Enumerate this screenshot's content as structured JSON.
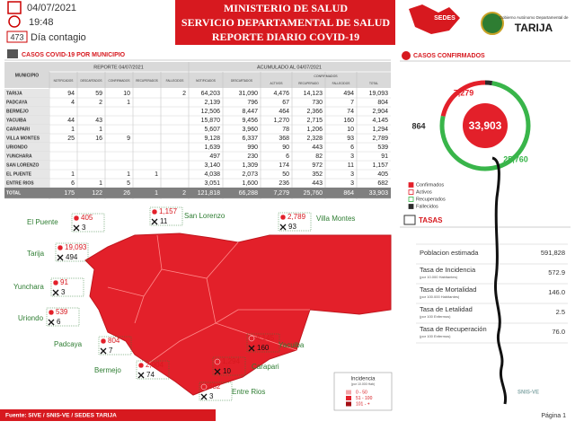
{
  "header": {
    "date": "04/07/2021",
    "time": "19:48",
    "day_number": "473",
    "day_label": "Día contagio",
    "ministry": "MINISTERIO DE SALUD",
    "service": "SERVICIO DEPARTAMENTAL DE SALUD",
    "report": "REPORTE DIARIO COVID-19",
    "logo_sedes": "SEDES",
    "gov_line": "Gobierno Autónomo Departamental de",
    "gov_name": "TARIJA"
  },
  "table": {
    "title": "CASOS COVID-19 POR MUNICIPIO",
    "municipio": "MUNICIPIO",
    "report_header": "REPORTE 04/07/2021",
    "acum_header": "ACUMULADO AL 04/07/2021",
    "report_columns": [
      "NOTIFICADOS",
      "DESCARTADOS",
      "CONFIRMADOS",
      "RECUPERADOS",
      "FALLECIDOS"
    ],
    "acum_columns": [
      "NOTIFICADOS",
      "DESCARTADOS"
    ],
    "confirmados": "CONFIRMADOS",
    "confirm_columns": [
      "ACTIVOS",
      "RECUPERADO",
      "FALLECIDOS",
      "TOTAL"
    ],
    "rows": [
      [
        "TARIJA",
        "94",
        "59",
        "10",
        null,
        "2",
        "64,203",
        "31,090",
        "4,476",
        "14,123",
        "494",
        "19,093"
      ],
      [
        "PADCAYA",
        "4",
        "2",
        "1",
        null,
        null,
        "2,139",
        "796",
        "67",
        "730",
        "7",
        "804"
      ],
      [
        "BERMEJO",
        null,
        null,
        null,
        null,
        null,
        "12,506",
        "8,447",
        "464",
        "2,366",
        "74",
        "2,904"
      ],
      [
        "YACUIBA",
        "44",
        "43",
        null,
        null,
        null,
        "15,870",
        "9,456",
        "1,270",
        "2,715",
        "160",
        "4,145"
      ],
      [
        "CARAPARI",
        "1",
        "1",
        null,
        null,
        null,
        "5,607",
        "3,960",
        "78",
        "1,206",
        "10",
        "1,294"
      ],
      [
        "VILLA MONTES",
        "25",
        "16",
        "9",
        null,
        null,
        "9,128",
        "6,337",
        "368",
        "2,328",
        "93",
        "2,789"
      ],
      [
        "URIONDO",
        null,
        null,
        null,
        null,
        null,
        "1,639",
        "990",
        "90",
        "443",
        "6",
        "539"
      ],
      [
        "YUNCHARA",
        null,
        null,
        null,
        null,
        null,
        "497",
        "230",
        "6",
        "82",
        "3",
        "91"
      ],
      [
        "SAN LORENZO",
        null,
        null,
        null,
        null,
        null,
        "3,140",
        "1,309",
        "174",
        "972",
        "11",
        "1,157"
      ],
      [
        "EL PUENTE",
        "1",
        null,
        "1",
        "1",
        null,
        "4,038",
        "2,073",
        "50",
        "352",
        "3",
        "405"
      ],
      [
        "ENTRE RIOS",
        "6",
        "1",
        "5",
        null,
        null,
        "3,051",
        "1,600",
        "236",
        "443",
        "3",
        "682"
      ]
    ],
    "total": [
      "TOTAL",
      "175",
      "122",
      "26",
      "1",
      "2",
      "121,818",
      "66,288",
      "7,279",
      "25,760",
      "864",
      "33,903"
    ]
  },
  "donut": {
    "title": "CASOS CONFIRMADOS",
    "series": [
      {
        "name": "Confirmados",
        "color": "#e3202a",
        "value": 33903,
        "value_label": "33,903"
      },
      {
        "name": "Activos",
        "color": "#e3202a",
        "value": 7279,
        "value_label": "7,279"
      },
      {
        "name": "Recuperados",
        "color": "#39b54a",
        "value": 25760,
        "value_label": "25,760"
      },
      {
        "name": "Fallecidos",
        "color": "#2b2b2b",
        "value": 864,
        "value_label": "864"
      }
    ]
  },
  "rates": {
    "title": "TASAS",
    "rows": [
      {
        "label": "Poblacion estimada",
        "value": "591,828"
      },
      {
        "label": "Tasa de Incidencia",
        "note": "(por 10.000 Habitantes)",
        "value": "572.9"
      },
      {
        "label": "Tasa de Mortalidad",
        "note": "(por 100.000 Habitantes)",
        "value": "146.0"
      },
      {
        "label": "Tasa de Letalidad",
        "note": "(por 100 Enfermos)",
        "value": "2.5"
      },
      {
        "label": "Tasa de Recuperación",
        "note": "(por 100 Enfermos)",
        "value": "76.0"
      }
    ]
  },
  "map": {
    "labels": [
      {
        "name": "El Puente",
        "confirmed": "405",
        "deaths": "3"
      },
      {
        "name": "San Lorenzo",
        "confirmed": "1,157",
        "deaths": "11"
      },
      {
        "name": "Villa Montes",
        "confirmed": "2,789",
        "deaths": "93"
      },
      {
        "name": "Tarija",
        "confirmed": "19,093",
        "deaths": "494"
      },
      {
        "name": "Yunchara",
        "confirmed": "91",
        "deaths": "3"
      },
      {
        "name": "Uriondo",
        "confirmed": "539",
        "deaths": "6"
      },
      {
        "name": "Padcaya",
        "confirmed": "804",
        "deaths": "7"
      },
      {
        "name": "Bermejo",
        "confirmed": "2,904",
        "deaths": "74"
      },
      {
        "name": "Entre Rios",
        "confirmed": "682",
        "deaths": "3"
      },
      {
        "name": "Carapari",
        "confirmed": "1,294",
        "deaths": "10"
      },
      {
        "name": "Yacuiba",
        "confirmed": "4,145",
        "deaths": "160"
      }
    ],
    "legend_title": "Incidencia",
    "legend_note": "(por 10.000 Hab)",
    "legend": [
      {
        "label": "0 - 50",
        "color": "#f4a5a8"
      },
      {
        "label": "51 - 100",
        "color": "#e3202a"
      },
      {
        "label": "101 - +",
        "color": "#a50f15"
      }
    ]
  },
  "footer": {
    "source": "Fuente: SIVE / SNIS-VE / SEDES TARIJA",
    "page": "Página 1",
    "logo": "SNIS-VE"
  }
}
